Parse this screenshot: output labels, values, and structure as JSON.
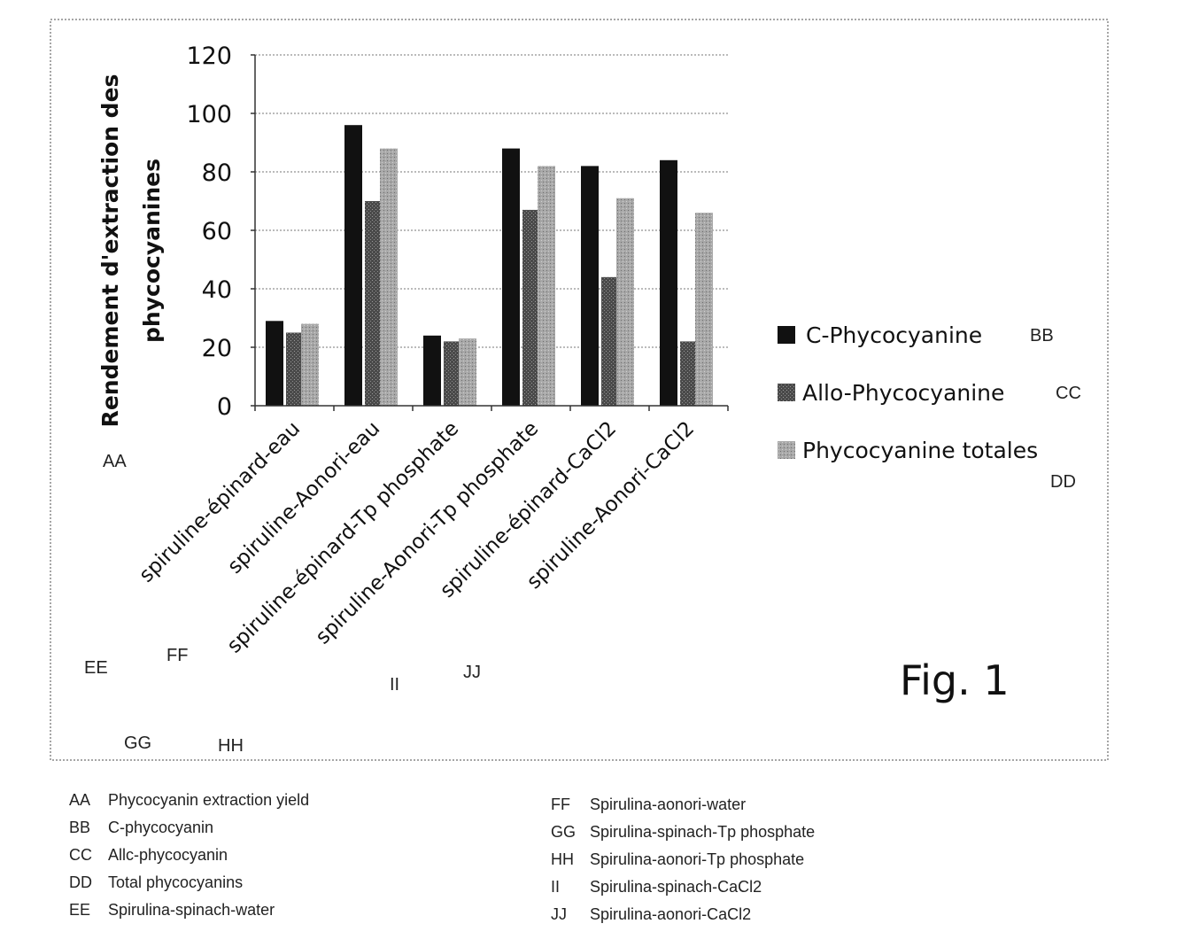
{
  "chart_data": {
    "type": "bar",
    "ylabel_lines": [
      "Rendement d'extraction des",
      "phycocyanines"
    ],
    "ylim": [
      0,
      120
    ],
    "yticks": [
      0,
      20,
      40,
      60,
      80,
      100,
      120
    ],
    "grid": true,
    "legend_position": "right",
    "categories": [
      "spiruline-épinard-eau",
      "spiruline-Aonori-eau",
      "spiruline-épinard-Tp phosphate",
      "spiruline-Aonori-Tp phosphate",
      "spiruline-épinard-CaCl2",
      "spiruline-Aonori-CaCl2"
    ],
    "series": [
      {
        "name": "C-Phycocyanine",
        "color": "#111111",
        "values": [
          29,
          96,
          24,
          88,
          82,
          84
        ]
      },
      {
        "name": "Allo-Phycocyanine",
        "color": "#555555",
        "values": [
          25,
          70,
          22,
          67,
          44,
          22
        ]
      },
      {
        "name": "Phycocyanine totales",
        "color": "#a8a8a8",
        "values": [
          28,
          88,
          23,
          82,
          71,
          66
        ]
      }
    ]
  },
  "annotations": {
    "axis_code": "AA",
    "legend_codes": [
      "BB",
      "CC",
      "DD"
    ],
    "category_codes": [
      "EE",
      "FF",
      "GG",
      "HH",
      "II",
      "JJ"
    ]
  },
  "figure_label": "Fig. 1",
  "key": {
    "left": [
      {
        "code": "AA",
        "text": "Phycocyanin extraction yield"
      },
      {
        "code": "BB",
        "text": "C-phycocyanin"
      },
      {
        "code": "CC",
        "text": "Allc-phycocyanin"
      },
      {
        "code": "DD",
        "text": "Total phycocyanins"
      },
      {
        "code": "EE",
        "text": "Spirulina-spinach-water"
      }
    ],
    "right": [
      {
        "code": "FF",
        "text": "Spirulina-aonori-water"
      },
      {
        "code": "GG",
        "text": "Spirulina-spinach-Tp phosphate"
      },
      {
        "code": "HH",
        "text": "Spirulina-aonori-Tp phosphate"
      },
      {
        "code": "II",
        "text": "Spirulina-spinach-CaCl2"
      },
      {
        "code": "JJ",
        "text": "Spirulina-aonori-CaCl2"
      }
    ]
  }
}
